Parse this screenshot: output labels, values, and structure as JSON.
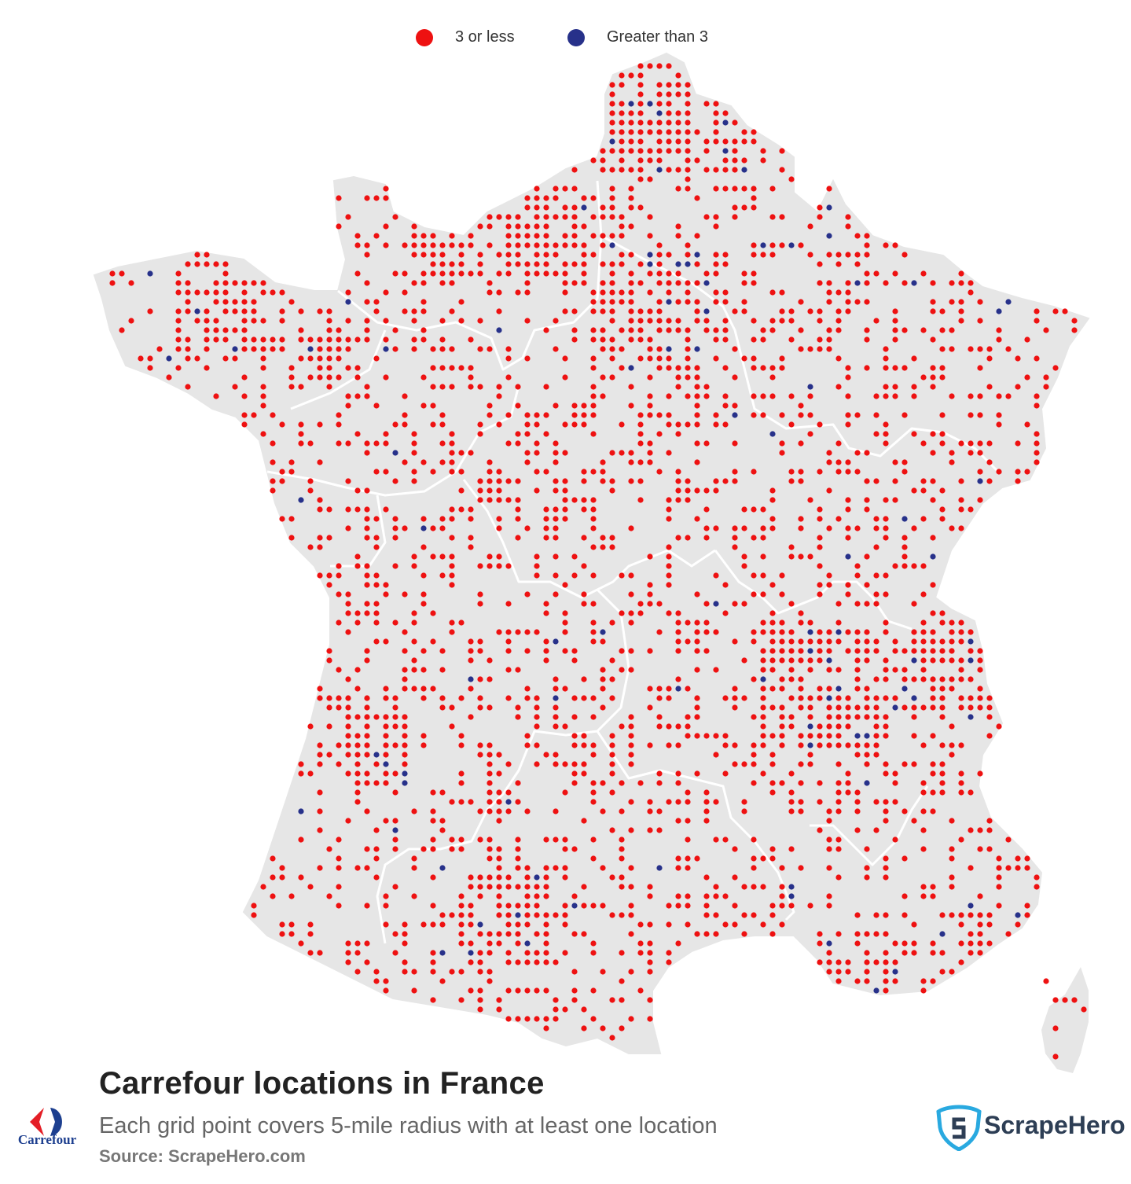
{
  "legend": {
    "small": {
      "label": "3 or less",
      "color": "#ee1111"
    },
    "large": {
      "label": "Greater than 3",
      "color": "#27318a"
    }
  },
  "title": "Carrefour locations in France",
  "subtitle": "Each grid point covers 5-mile radius with at least one location",
  "source": "Source: ScrapeHero.com",
  "logos": {
    "carrefour": {
      "text": "Carrefour",
      "icon": "carrefour-logo"
    },
    "scrapehero": {
      "text": "ScrapeHero",
      "icon": "scrapehero-shield-logo"
    }
  },
  "colors": {
    "land": "#e6e6e6",
    "borders": "#ffffff",
    "watermark": "#dde6ee"
  }
}
